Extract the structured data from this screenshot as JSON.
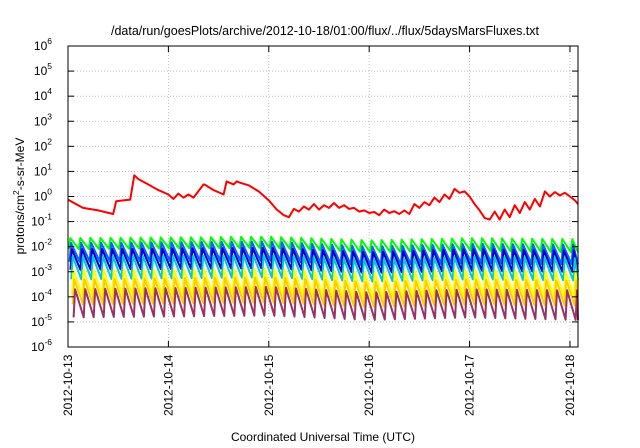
{
  "chart_data": {
    "type": "line",
    "title": "/data/run/goesPlots/archive/2012-10-18/01:00/flux/../flux/5daysMarsFluxes.txt",
    "xlabel": "Coordinated Universal Time (UTC)",
    "ylabel": "protons/cm²-s-sr-MeV",
    "ylabel_parts": {
      "pre": "protons/cm",
      "sup": "2",
      "post": "-s-sr-MeV"
    },
    "yscale": "log",
    "ylim": [
      1e-06,
      1000000.0
    ],
    "xlim": [
      0,
      5.08
    ],
    "x_unit": "days since 2012-10-13 00:00 UTC",
    "grid": true,
    "x_ticks": [
      {
        "value": 0,
        "label": "2012-10-13"
      },
      {
        "value": 1,
        "label": "2012-10-14"
      },
      {
        "value": 2,
        "label": "2012-10-15"
      },
      {
        "value": 3,
        "label": "2012-10-16"
      },
      {
        "value": 4,
        "label": "2012-10-17"
      },
      {
        "value": 5,
        "label": "2012-10-18"
      }
    ],
    "y_ticks": [
      {
        "value": 1e-06,
        "base": "10",
        "exp": "-6"
      },
      {
        "value": 1e-05,
        "base": "10",
        "exp": "-5"
      },
      {
        "value": 0.0001,
        "base": "10",
        "exp": "-4"
      },
      {
        "value": 0.001,
        "base": "10",
        "exp": "-3"
      },
      {
        "value": 0.01,
        "base": "10",
        "exp": "-2"
      },
      {
        "value": 0.1,
        "base": "10",
        "exp": "-1"
      },
      {
        "value": 1.0,
        "base": "10",
        "exp": "0"
      },
      {
        "value": 10.0,
        "base": "10",
        "exp": "1"
      },
      {
        "value": 100.0,
        "base": "10",
        "exp": "2"
      },
      {
        "value": 1000.0,
        "base": "10",
        "exp": "3"
      },
      {
        "value": 10000.0,
        "base": "10",
        "exp": "4"
      },
      {
        "value": 100000.0,
        "base": "10",
        "exp": "5"
      },
      {
        "value": 1000000.0,
        "base": "10",
        "exp": "6"
      }
    ],
    "sawtooth_teeth_per_day": 10,
    "series": [
      {
        "color": "#ff0000",
        "x": [
          0,
          0.08,
          0.15,
          0.3,
          0.45,
          0.48,
          0.55,
          0.62,
          0.66,
          0.7,
          0.8,
          0.9,
          1.0,
          1.05,
          1.1,
          1.15,
          1.2,
          1.25,
          1.35,
          1.36,
          1.45,
          1.55,
          1.58,
          1.65,
          1.68,
          1.72,
          1.8,
          1.9,
          2.0,
          2.08,
          2.15,
          2.2,
          2.25,
          2.3,
          2.35,
          2.4,
          2.45,
          2.5,
          2.55,
          2.6,
          2.65,
          2.7,
          2.75,
          2.8,
          2.85,
          2.9,
          2.95,
          3.0,
          3.05,
          3.1,
          3.15,
          3.2,
          3.25,
          3.3,
          3.35,
          3.4,
          3.45,
          3.5,
          3.55,
          3.6,
          3.65,
          3.7,
          3.75,
          3.8,
          3.85,
          3.9,
          3.95,
          4.0,
          4.05,
          4.1,
          4.15,
          4.2,
          4.25,
          4.3,
          4.35,
          4.4,
          4.45,
          4.5,
          4.55,
          4.6,
          4.65,
          4.7,
          4.75,
          4.8,
          4.85,
          4.9,
          4.95,
          5.0,
          5.05,
          5.08
        ],
        "y": [
          0.75,
          0.5,
          0.35,
          0.28,
          0.2,
          0.65,
          0.7,
          0.75,
          7.0,
          5.0,
          3.0,
          1.8,
          1.2,
          0.8,
          1.3,
          0.9,
          1.2,
          0.9,
          3.0,
          3.0,
          1.8,
          1.2,
          4.0,
          3.0,
          4.0,
          3.5,
          2.8,
          1.6,
          0.7,
          0.3,
          0.18,
          0.15,
          0.32,
          0.25,
          0.4,
          0.3,
          0.5,
          0.3,
          0.45,
          0.35,
          0.55,
          0.35,
          0.45,
          0.32,
          0.35,
          0.25,
          0.28,
          0.22,
          0.24,
          0.18,
          0.3,
          0.22,
          0.26,
          0.2,
          0.28,
          0.2,
          0.5,
          0.35,
          0.6,
          0.45,
          0.9,
          0.6,
          1.2,
          0.8,
          2.0,
          1.4,
          1.6,
          1.0,
          0.5,
          0.28,
          0.14,
          0.12,
          0.25,
          0.12,
          0.3,
          0.15,
          0.45,
          0.22,
          0.6,
          0.3,
          0.8,
          0.4,
          1.6,
          1.0,
          1.5,
          1.1,
          1.4,
          1.0,
          0.7,
          0.5
        ]
      },
      {
        "color": "#00ff00",
        "peak_envelope": [
          [
            0,
            0.022
          ],
          [
            2,
            0.025
          ],
          [
            3,
            0.018
          ],
          [
            4,
            0.022
          ],
          [
            5.08,
            0.02
          ]
        ],
        "trough_envelope": [
          [
            0,
            0.008
          ],
          [
            2,
            0.009
          ],
          [
            3,
            0.006
          ],
          [
            4,
            0.007
          ],
          [
            5.08,
            0.006
          ]
        ]
      },
      {
        "color": "#0066ff",
        "peak_envelope": [
          [
            0,
            0.014
          ],
          [
            2,
            0.016
          ],
          [
            3,
            0.01
          ],
          [
            4,
            0.013
          ],
          [
            5.08,
            0.012
          ]
        ],
        "trough_envelope": [
          [
            0,
            0.0025
          ],
          [
            2,
            0.0028
          ],
          [
            3,
            0.0018
          ],
          [
            4,
            0.0022
          ],
          [
            5.08,
            0.002
          ]
        ]
      },
      {
        "color": "#0000cc",
        "peak_envelope": [
          [
            0,
            0.008
          ],
          [
            2,
            0.009
          ],
          [
            3,
            0.006
          ],
          [
            4,
            0.008
          ],
          [
            5.08,
            0.007
          ]
        ],
        "trough_envelope": [
          [
            0,
            0.0012
          ],
          [
            2,
            0.0014
          ],
          [
            3,
            0.0009
          ],
          [
            4,
            0.0011
          ],
          [
            5.08,
            0.001
          ]
        ]
      },
      {
        "color": "#00cccc",
        "peak_envelope": [
          [
            0,
            0.004
          ],
          [
            2,
            0.0045
          ],
          [
            3,
            0.003
          ],
          [
            4,
            0.004
          ],
          [
            5.08,
            0.0035
          ]
        ],
        "trough_envelope": [
          [
            0,
            0.0005
          ],
          [
            2,
            0.0006
          ],
          [
            3,
            0.0004
          ],
          [
            4,
            0.0005
          ],
          [
            5.08,
            0.00045
          ]
        ]
      },
      {
        "color": "#ffff00",
        "peak_envelope": [
          [
            0,
            0.0012
          ],
          [
            2,
            0.0013
          ],
          [
            3,
            0.0009
          ],
          [
            4,
            0.0012
          ],
          [
            5.08,
            0.001
          ]
        ],
        "trough_envelope": [
          [
            0,
            0.00012
          ],
          [
            2,
            0.00013
          ],
          [
            3,
            9e-05
          ],
          [
            4,
            0.00011
          ],
          [
            5.08,
            0.0001
          ]
        ]
      },
      {
        "color": "#ffcc00",
        "peak_envelope": [
          [
            0,
            0.0005
          ],
          [
            2,
            0.0006
          ],
          [
            3,
            0.0004
          ],
          [
            4,
            0.0005
          ],
          [
            5.08,
            0.00045
          ]
        ],
        "trough_envelope": [
          [
            0,
            5e-05
          ],
          [
            2,
            6e-05
          ],
          [
            3,
            4e-05
          ],
          [
            4,
            5e-05
          ],
          [
            5.08,
            4.5e-05
          ]
        ]
      },
      {
        "color": "#993366",
        "peak_envelope": [
          [
            0,
            0.0002
          ],
          [
            2,
            0.00025
          ],
          [
            3,
            0.00015
          ],
          [
            4,
            0.0002
          ],
          [
            5.08,
            0.00018
          ]
        ],
        "trough_envelope": [
          [
            0,
            1.5e-05
          ],
          [
            2,
            1.8e-05
          ],
          [
            3,
            1.2e-05
          ],
          [
            4,
            1.5e-05
          ],
          [
            5.08,
            1.2e-05
          ]
        ]
      }
    ]
  }
}
